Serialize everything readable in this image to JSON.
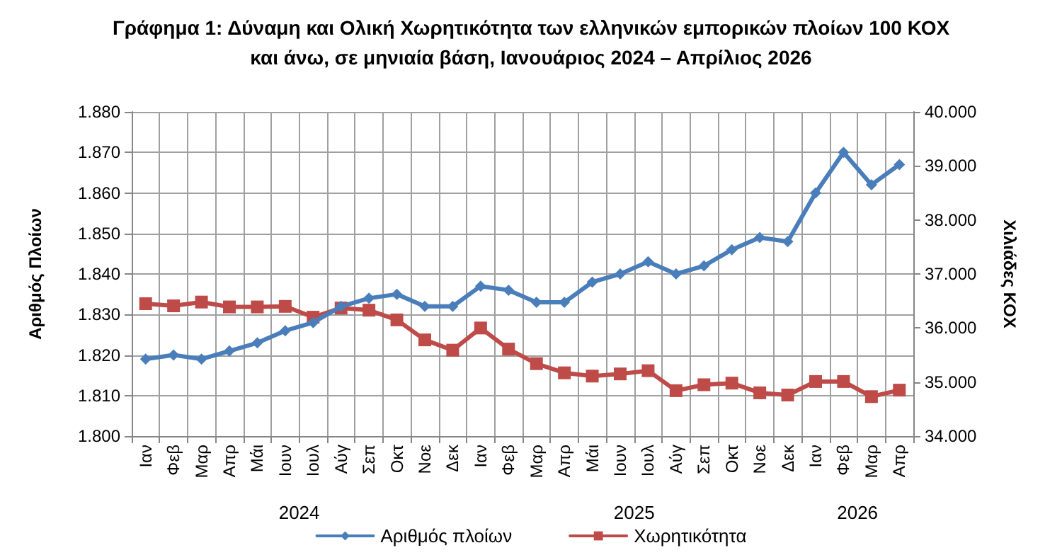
{
  "chart_data": {
    "type": "line",
    "title": "Γράφημα 1: Δύναμη και Ολική Χωρητικότητα των ελληνικών εμπορικών πλοίων 100 ΚΟΧ\nκαι άνω, σε μηνιαία βάση, Ιανουάριος 2024 – Απρίλιος 2026",
    "ylabel": "Αριθμός Πλοίων",
    "y2label": "Χιλιάδες ΚΟΧ",
    "categories": [
      "Ιαν",
      "Φεβ",
      "Μαρ",
      "Απρ",
      "Μάι",
      "Ιουν",
      "Ιουλ",
      "Αύγ",
      "Σεπ",
      "Οκτ",
      "Νοε",
      "Δεκ",
      "Ιαν",
      "Φεβ",
      "Μαρ",
      "Απρ",
      "Μάι",
      "Ιουν",
      "Ιουλ",
      "Αύγ",
      "Σεπ",
      "Οκτ",
      "Νοε",
      "Δεκ",
      "Ιαν",
      "Φεβ",
      "Μαρ",
      "Απρ"
    ],
    "annotations": [
      "2024",
      "2025",
      "2026"
    ],
    "series": [
      {
        "name": "Αριθμός πλοίων",
        "color": "#4a7ebb",
        "marker": "diamond",
        "values": [
          1819,
          1820,
          1819,
          1821,
          1823,
          1826,
          1828,
          1832,
          1834,
          1835,
          1832,
          1832,
          1837,
          1836,
          1833,
          1833,
          1838,
          1840,
          1843,
          1840,
          1842,
          1846,
          1849,
          1848,
          1860,
          1870,
          1862,
          1867
        ]
      },
      {
        "name": "Χωρητικότητα",
        "color": "#be4b48",
        "marker": "square",
        "axis": "y2",
        "values": [
          36450,
          36410,
          36480,
          36390,
          36390,
          36400,
          36200,
          36370,
          36330,
          36150,
          35780,
          35590,
          36000,
          35610,
          35340,
          35170,
          35110,
          35150,
          35210,
          34840,
          34950,
          34980,
          34800,
          34760,
          35010,
          35010,
          34730,
          34850
        ]
      }
    ],
    "ylim": [
      1800,
      1880
    ],
    "yticks": [
      {
        "value": 1800,
        "label": "1.800"
      },
      {
        "value": 1810,
        "label": "1.810"
      },
      {
        "value": 1820,
        "label": "1.820"
      },
      {
        "value": 1830,
        "label": "1.830"
      },
      {
        "value": 1840,
        "label": "1.840"
      },
      {
        "value": 1850,
        "label": "1.850"
      },
      {
        "value": 1860,
        "label": "1.860"
      },
      {
        "value": 1870,
        "label": "1.870"
      },
      {
        "value": 1880,
        "label": "1.880"
      }
    ],
    "y2lim": [
      34000,
      40000
    ],
    "y2ticks": [
      {
        "value": 34000,
        "label": "34.000"
      },
      {
        "value": 35000,
        "label": "35.000"
      },
      {
        "value": 36000,
        "label": "36.000"
      },
      {
        "value": 37000,
        "label": "37.000"
      },
      {
        "value": 38000,
        "label": "38.000"
      },
      {
        "value": 39000,
        "label": "39.000"
      },
      {
        "value": 40000,
        "label": "40.000"
      }
    ],
    "grid": true,
    "legend": "bottom",
    "line_style": "solid"
  }
}
